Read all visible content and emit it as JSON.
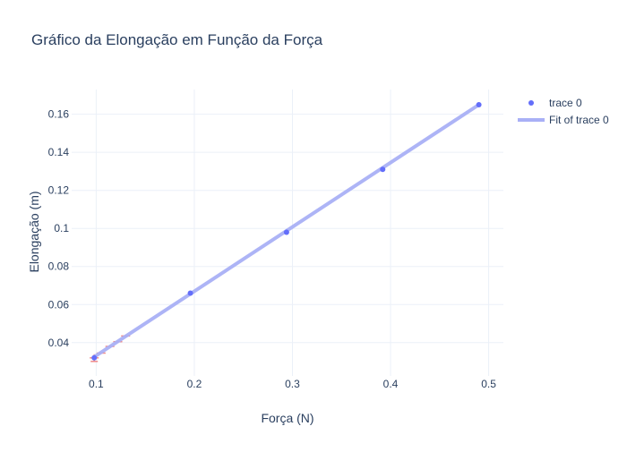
{
  "chart_data": {
    "type": "scatter",
    "title": "Gráfico da Elongação em Função da Força",
    "xlabel": "Força (N)",
    "ylabel": "Elongação (m)",
    "xlim": [
      0.075,
      0.515
    ],
    "ylim": [
      0.0225,
      0.173
    ],
    "x_ticks": [
      0.1,
      0.2,
      0.3,
      0.4,
      0.5
    ],
    "x_tick_labels": [
      "0.1",
      "0.2",
      "0.3",
      "0.4",
      "0.5"
    ],
    "y_ticks": [
      0.04,
      0.06,
      0.08,
      0.1,
      0.12,
      0.14,
      0.16
    ],
    "y_tick_labels": [
      "0.04",
      "0.06",
      "0.08",
      "0.1",
      "0.12",
      "0.14",
      "0.16"
    ],
    "grid": true,
    "legend_position": "top-right",
    "series": [
      {
        "name": "trace 0",
        "kind": "markers",
        "color": "#636efa",
        "x": [
          0.098,
          0.196,
          0.294,
          0.392,
          0.49
        ],
        "y": [
          0.032,
          0.066,
          0.098,
          0.131,
          0.165
        ]
      },
      {
        "name": "Fit of trace 0",
        "kind": "line",
        "color": "#a9b0f6",
        "x": [
          0.098,
          0.49
        ],
        "y": [
          0.0325,
          0.165
        ]
      }
    ],
    "error_marks": {
      "color": "#ef8a8a",
      "x": [
        0.098,
        0.105,
        0.114,
        0.122,
        0.13
      ],
      "y": [
        0.032,
        0.0345,
        0.038,
        0.0405,
        0.0435
      ]
    }
  }
}
